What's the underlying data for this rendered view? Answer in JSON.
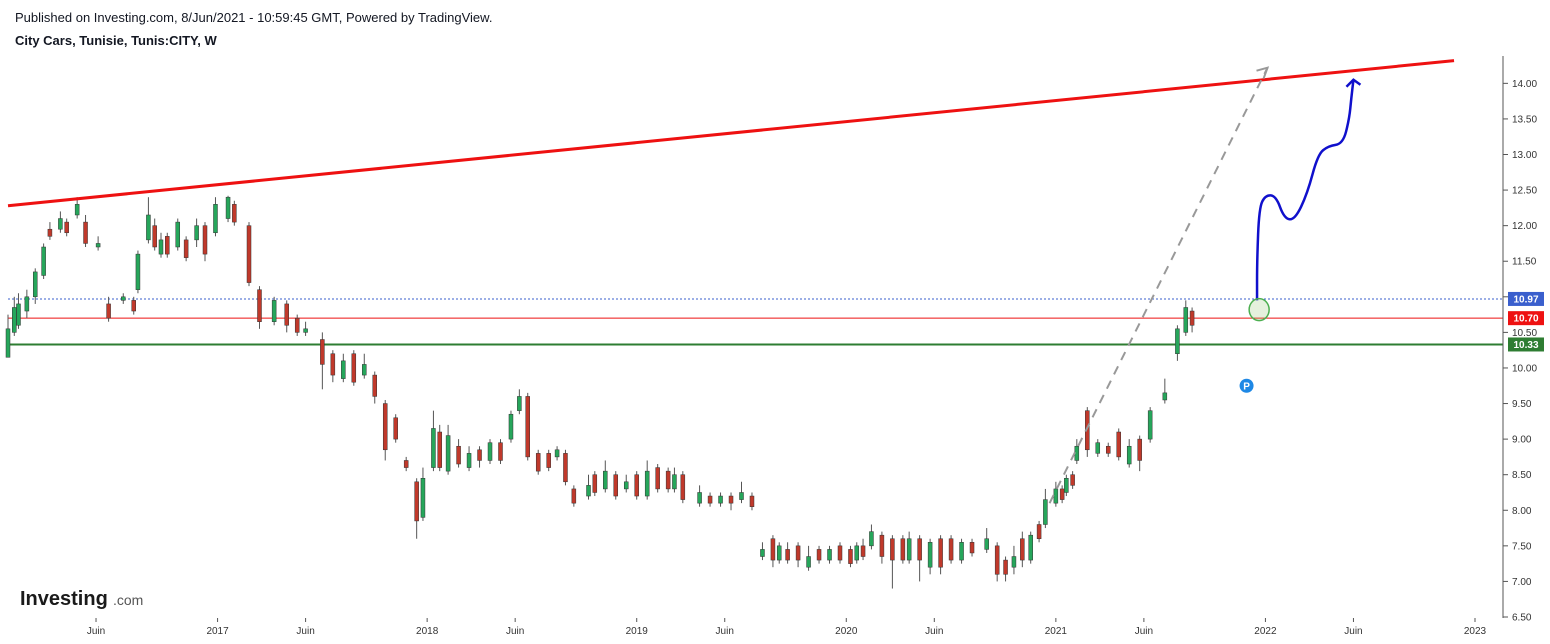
{
  "header": {
    "published": "Published on Investing.com, 8/Jun/2021 - 10:59:45 GMT, Powered by TradingView.",
    "symbol": "City Cars, Tunisie, Tunis:CITY, W"
  },
  "logo": {
    "main": "Investing",
    "suffix": ".com"
  },
  "colors": {
    "up": "#26a65b",
    "down": "#c0392b",
    "wick": "#555555",
    "trend": "#ee1111",
    "support": "#2e7d32",
    "resistance": "#ee1111",
    "last_price": "#3a5fcd",
    "projection": "#1010cc",
    "dashed": "#999999",
    "p_marker": "#1e88e5"
  },
  "chart_data": {
    "type": "candlestick",
    "title": "City Cars, Tunisie, Tunis:CITY, W",
    "ylim": [
      6.5,
      14.3
    ],
    "y_ticks": [
      "6.50",
      "7.00",
      "7.50",
      "8.00",
      "8.50",
      "9.00",
      "9.50",
      "10.00",
      "10.50",
      "11.00",
      "11.50",
      "12.00",
      "12.50",
      "13.00",
      "13.50",
      "14.00"
    ],
    "x_ticks": [
      "Juin",
      "2017",
      "Juin",
      "2018",
      "Juin",
      "2019",
      "Juin",
      "2020",
      "Juin",
      "2021",
      "Juin",
      "2022",
      "Juin",
      "2023"
    ],
    "grid": false,
    "price_tags": [
      {
        "label": "10.97",
        "value": 10.97,
        "color": "#3a5fcd"
      },
      {
        "label": "10.70",
        "value": 10.7,
        "color": "#ee1111"
      },
      {
        "label": "10.33",
        "value": 10.33,
        "color": "#2e7d32"
      }
    ],
    "horizontal_lines": [
      {
        "name": "last-price",
        "value": 10.97,
        "style": "dotted",
        "color": "#3a5fcd"
      },
      {
        "name": "resistance",
        "value": 10.7,
        "style": "solid",
        "color": "#ee1111"
      },
      {
        "name": "support",
        "value": 10.33,
        "style": "solid",
        "color": "#2e7d32"
      }
    ],
    "trendline": {
      "start": [
        2016.0,
        12.28
      ],
      "end": [
        2022.9,
        14.32
      ]
    },
    "dashed_projection": {
      "start": [
        2020.97,
        8.1
      ],
      "end": [
        2022.01,
        14.22
      ]
    },
    "projection_path": [
      [
        2021.96,
        10.95
      ],
      [
        2021.96,
        11.5
      ],
      [
        2021.97,
        12.25
      ],
      [
        2022.0,
        12.43
      ],
      [
        2022.05,
        12.42
      ],
      [
        2022.09,
        12.1
      ],
      [
        2022.14,
        12.08
      ],
      [
        2022.2,
        12.45
      ],
      [
        2022.25,
        13.0
      ],
      [
        2022.3,
        13.12
      ],
      [
        2022.37,
        13.15
      ],
      [
        2022.4,
        13.5
      ],
      [
        2022.41,
        13.8
      ],
      [
        2022.42,
        14.05
      ]
    ],
    "p_marker": {
      "label": "P",
      "x": 2021.91,
      "y": 9.75
    },
    "circle_marker": {
      "x": 2021.97,
      "y": 10.82
    },
    "candles_up": [
      [
        2016.0,
        10.15,
        10.55,
        10.4,
        10.75
      ],
      [
        2016.03,
        10.5,
        10.85,
        10.45,
        11.0
      ],
      [
        2016.05,
        10.6,
        10.9,
        10.55,
        11.05
      ],
      [
        2016.09,
        10.8,
        11.0,
        10.7,
        11.1
      ],
      [
        2016.13,
        11.0,
        11.35,
        10.9,
        11.4
      ],
      [
        2016.17,
        11.3,
        11.7,
        11.25,
        11.75
      ],
      [
        2016.25,
        11.95,
        12.1,
        11.9,
        12.2
      ],
      [
        2016.33,
        12.15,
        12.3,
        12.1,
        12.4
      ],
      [
        2016.43,
        11.7,
        11.75,
        11.65,
        11.85
      ],
      [
        2016.55,
        10.95,
        11.0,
        10.9,
        11.05
      ],
      [
        2016.62,
        11.1,
        11.6,
        11.05,
        11.65
      ],
      [
        2016.67,
        11.8,
        12.15,
        11.75,
        12.4
      ],
      [
        2016.73,
        11.6,
        11.8,
        11.55,
        11.9
      ],
      [
        2016.81,
        11.7,
        12.05,
        11.65,
        12.1
      ],
      [
        2016.9,
        11.8,
        12.0,
        11.7,
        12.1
      ],
      [
        2016.99,
        11.9,
        12.3,
        11.85,
        12.4
      ],
      [
        2017.05,
        12.1,
        12.4,
        12.05,
        12.42
      ],
      [
        2017.27,
        10.65,
        10.95,
        10.6,
        11.0
      ],
      [
        2017.42,
        10.5,
        10.55,
        10.45,
        10.65
      ],
      [
        2017.6,
        9.85,
        10.1,
        9.8,
        10.2
      ],
      [
        2017.7,
        9.9,
        10.05,
        9.85,
        10.2
      ],
      [
        2017.98,
        7.9,
        8.45,
        7.85,
        8.6
      ],
      [
        2018.03,
        8.6,
        9.15,
        8.55,
        9.4
      ],
      [
        2018.1,
        8.55,
        9.05,
        8.5,
        9.2
      ],
      [
        2018.2,
        8.6,
        8.8,
        8.55,
        8.9
      ],
      [
        2018.3,
        8.7,
        8.95,
        8.65,
        9.0
      ],
      [
        2018.4,
        9.0,
        9.35,
        8.95,
        9.4
      ],
      [
        2018.44,
        9.4,
        9.6,
        9.35,
        9.7
      ],
      [
        2018.62,
        8.75,
        8.85,
        8.7,
        8.9
      ],
      [
        2018.77,
        8.2,
        8.35,
        8.15,
        8.5
      ],
      [
        2018.85,
        8.3,
        8.55,
        8.25,
        8.7
      ],
      [
        2018.95,
        8.3,
        8.4,
        8.25,
        8.5
      ],
      [
        2019.05,
        8.2,
        8.55,
        8.15,
        8.7
      ],
      [
        2019.18,
        8.3,
        8.5,
        8.25,
        8.6
      ],
      [
        2019.3,
        8.1,
        8.25,
        8.05,
        8.35
      ],
      [
        2019.4,
        8.1,
        8.2,
        8.05,
        8.25
      ],
      [
        2019.5,
        8.15,
        8.25,
        8.1,
        8.4
      ],
      [
        2019.6,
        7.35,
        7.45,
        7.3,
        7.55
      ],
      [
        2019.68,
        7.3,
        7.5,
        7.25,
        7.55
      ],
      [
        2019.82,
        7.2,
        7.35,
        7.15,
        7.5
      ],
      [
        2019.92,
        7.3,
        7.45,
        7.25,
        7.5
      ],
      [
        2020.05,
        7.3,
        7.5,
        7.25,
        7.55
      ],
      [
        2020.12,
        7.5,
        7.7,
        7.45,
        7.8
      ],
      [
        2020.3,
        7.3,
        7.6,
        7.25,
        7.7
      ],
      [
        2020.4,
        7.2,
        7.55,
        7.1,
        7.6
      ],
      [
        2020.55,
        7.3,
        7.55,
        7.25,
        7.6
      ],
      [
        2020.67,
        7.45,
        7.6,
        7.4,
        7.75
      ],
      [
        2020.8,
        7.2,
        7.35,
        7.1,
        7.5
      ],
      [
        2020.88,
        7.3,
        7.65,
        7.25,
        7.7
      ],
      [
        2020.95,
        7.8,
        8.15,
        7.75,
        8.3
      ],
      [
        2021.0,
        8.1,
        8.3,
        8.05,
        8.4
      ],
      [
        2021.05,
        8.25,
        8.45,
        8.2,
        8.5
      ],
      [
        2021.1,
        8.7,
        8.9,
        8.65,
        9.0
      ],
      [
        2021.2,
        8.8,
        8.95,
        8.75,
        9.0
      ],
      [
        2021.35,
        8.65,
        8.9,
        8.6,
        9.0
      ],
      [
        2021.45,
        9.0,
        9.4,
        8.95,
        9.45
      ],
      [
        2021.52,
        9.55,
        9.65,
        9.5,
        9.85
      ],
      [
        2021.58,
        10.2,
        10.55,
        10.1,
        10.6
      ],
      [
        2021.62,
        10.5,
        10.85,
        10.45,
        10.95
      ]
    ],
    "candles_down": [
      [
        2016.2,
        11.95,
        11.85,
        11.8,
        12.05
      ],
      [
        2016.28,
        12.05,
        11.9,
        11.85,
        12.1
      ],
      [
        2016.37,
        12.05,
        11.75,
        11.7,
        12.15
      ],
      [
        2016.48,
        10.9,
        10.7,
        10.65,
        11.0
      ],
      [
        2016.6,
        10.95,
        10.8,
        10.75,
        11.0
      ],
      [
        2016.7,
        12.0,
        11.7,
        11.65,
        12.1
      ],
      [
        2016.76,
        11.85,
        11.6,
        11.55,
        11.9
      ],
      [
        2016.85,
        11.8,
        11.55,
        11.5,
        11.85
      ],
      [
        2016.94,
        12.0,
        11.6,
        11.5,
        12.05
      ],
      [
        2017.08,
        12.3,
        12.05,
        12.0,
        12.35
      ],
      [
        2017.15,
        12.0,
        11.2,
        11.15,
        12.05
      ],
      [
        2017.2,
        11.1,
        10.65,
        10.55,
        11.15
      ],
      [
        2017.33,
        10.9,
        10.6,
        10.5,
        10.95
      ],
      [
        2017.38,
        10.7,
        10.5,
        10.45,
        10.75
      ],
      [
        2017.5,
        10.4,
        10.05,
        9.7,
        10.5
      ],
      [
        2017.55,
        10.2,
        9.9,
        9.8,
        10.25
      ],
      [
        2017.65,
        10.2,
        9.8,
        9.75,
        10.25
      ],
      [
        2017.75,
        9.9,
        9.6,
        9.5,
        9.95
      ],
      [
        2017.8,
        9.5,
        8.85,
        8.7,
        9.55
      ],
      [
        2017.85,
        9.3,
        9.0,
        8.95,
        9.35
      ],
      [
        2017.9,
        8.7,
        8.6,
        8.55,
        8.75
      ],
      [
        2017.95,
        8.4,
        7.85,
        7.6,
        8.45
      ],
      [
        2018.06,
        9.1,
        8.6,
        8.55,
        9.2
      ],
      [
        2018.15,
        8.9,
        8.65,
        8.6,
        9.0
      ],
      [
        2018.25,
        8.85,
        8.7,
        8.6,
        8.9
      ],
      [
        2018.35,
        8.95,
        8.7,
        8.65,
        9.0
      ],
      [
        2018.48,
        9.6,
        8.75,
        8.7,
        9.65
      ],
      [
        2018.53,
        8.8,
        8.55,
        8.5,
        8.85
      ],
      [
        2018.58,
        8.8,
        8.6,
        8.55,
        8.85
      ],
      [
        2018.66,
        8.8,
        8.4,
        8.35,
        8.85
      ],
      [
        2018.7,
        8.3,
        8.1,
        8.05,
        8.35
      ],
      [
        2018.8,
        8.5,
        8.25,
        8.2,
        8.55
      ],
      [
        2018.9,
        8.5,
        8.2,
        8.15,
        8.55
      ],
      [
        2019.0,
        8.5,
        8.2,
        8.15,
        8.55
      ],
      [
        2019.1,
        8.6,
        8.3,
        8.25,
        8.65
      ],
      [
        2019.15,
        8.55,
        8.3,
        8.25,
        8.6
      ],
      [
        2019.22,
        8.5,
        8.15,
        8.1,
        8.55
      ],
      [
        2019.35,
        8.2,
        8.1,
        8.05,
        8.25
      ],
      [
        2019.45,
        8.2,
        8.1,
        8.0,
        8.25
      ],
      [
        2019.55,
        8.2,
        8.05,
        8.0,
        8.25
      ],
      [
        2019.65,
        7.6,
        7.3,
        7.2,
        7.65
      ],
      [
        2019.72,
        7.45,
        7.3,
        7.25,
        7.55
      ],
      [
        2019.77,
        7.5,
        7.3,
        7.2,
        7.55
      ],
      [
        2019.87,
        7.45,
        7.3,
        7.25,
        7.5
      ],
      [
        2019.97,
        7.5,
        7.3,
        7.25,
        7.55
      ],
      [
        2020.02,
        7.45,
        7.25,
        7.2,
        7.5
      ],
      [
        2020.08,
        7.5,
        7.35,
        7.3,
        7.6
      ],
      [
        2020.17,
        7.65,
        7.35,
        7.25,
        7.7
      ],
      [
        2020.22,
        7.6,
        7.3,
        6.9,
        7.65
      ],
      [
        2020.27,
        7.6,
        7.3,
        7.25,
        7.65
      ],
      [
        2020.35,
        7.6,
        7.3,
        7.0,
        7.65
      ],
      [
        2020.45,
        7.6,
        7.2,
        7.1,
        7.65
      ],
      [
        2020.5,
        7.6,
        7.3,
        7.25,
        7.65
      ],
      [
        2020.6,
        7.55,
        7.4,
        7.35,
        7.6
      ],
      [
        2020.72,
        7.5,
        7.1,
        7.0,
        7.55
      ],
      [
        2020.76,
        7.3,
        7.1,
        7.0,
        7.35
      ],
      [
        2020.84,
        7.6,
        7.3,
        7.2,
        7.7
      ],
      [
        2020.92,
        7.8,
        7.6,
        7.55,
        7.85
      ],
      [
        2021.03,
        8.3,
        8.15,
        8.1,
        8.35
      ],
      [
        2021.08,
        8.5,
        8.35,
        8.3,
        8.55
      ],
      [
        2021.15,
        9.4,
        8.85,
        8.75,
        9.45
      ],
      [
        2021.25,
        8.9,
        8.8,
        8.75,
        8.95
      ],
      [
        2021.3,
        9.1,
        8.75,
        8.7,
        9.15
      ],
      [
        2021.4,
        9.0,
        8.7,
        8.55,
        9.05
      ],
      [
        2021.65,
        10.8,
        10.6,
        10.5,
        10.85
      ]
    ]
  }
}
